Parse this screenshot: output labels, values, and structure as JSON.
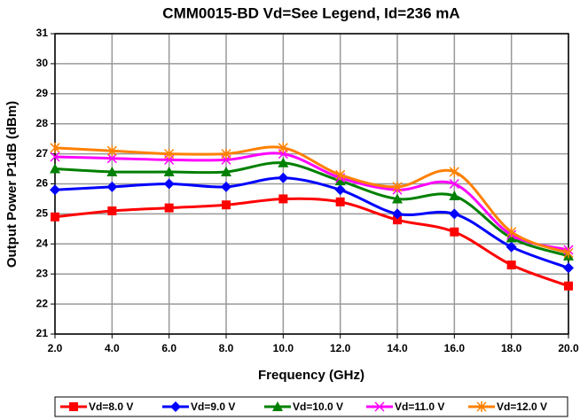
{
  "chart_data": {
    "type": "line",
    "title": "CMM0015-BD Vd=See Legend, Id=236 mA",
    "x_label": "Frequency (GHz)",
    "y_label": "Output Power P1dB (dBm)",
    "x": [
      2,
      4,
      6,
      8,
      10,
      12,
      14,
      16,
      18,
      20
    ],
    "xlim": [
      2,
      20
    ],
    "xticks": [
      {
        "value": 2,
        "label": "2.0"
      },
      {
        "value": 4,
        "label": "4.0"
      },
      {
        "value": 6,
        "label": "6.0"
      },
      {
        "value": 8,
        "label": "8.0"
      },
      {
        "value": 10,
        "label": "10.0"
      },
      {
        "value": 12,
        "label": "12.0"
      },
      {
        "value": 14,
        "label": "14.0"
      },
      {
        "value": 16,
        "label": "16.0"
      },
      {
        "value": 18,
        "label": "18.0"
      },
      {
        "value": 20,
        "label": "20.0"
      }
    ],
    "ylim": [
      21,
      31
    ],
    "yticks": [
      21,
      22,
      23,
      24,
      25,
      26,
      27,
      28,
      29,
      30,
      31
    ],
    "grid": true,
    "legend": "bottom",
    "series": [
      {
        "name": "Vd=8.0 V",
        "color": "#ff0000",
        "marker": "square",
        "values": [
          24.9,
          25.1,
          25.2,
          25.3,
          25.5,
          25.4,
          24.8,
          24.4,
          23.3,
          22.6
        ]
      },
      {
        "name": "Vd=9.0 V",
        "color": "#0000ff",
        "marker": "diamond",
        "values": [
          25.8,
          25.9,
          26.0,
          25.9,
          26.2,
          25.8,
          25.0,
          25.0,
          23.9,
          23.2
        ]
      },
      {
        "name": "Vd=10.0 V",
        "color": "#008000",
        "marker": "triangle",
        "values": [
          26.5,
          26.4,
          26.4,
          26.4,
          26.7,
          26.1,
          25.5,
          25.6,
          24.2,
          23.6
        ]
      },
      {
        "name": "Vd=11.0 V",
        "color": "#ff00ff",
        "marker": "x",
        "values": [
          26.9,
          26.85,
          26.8,
          26.8,
          27.0,
          26.2,
          25.8,
          26.0,
          24.3,
          23.8
        ]
      },
      {
        "name": "Vd=12.0 V",
        "color": "#ff8000",
        "marker": "star",
        "values": [
          27.2,
          27.1,
          27.0,
          27.0,
          27.2,
          26.3,
          25.9,
          26.4,
          24.4,
          23.7
        ]
      }
    ]
  }
}
